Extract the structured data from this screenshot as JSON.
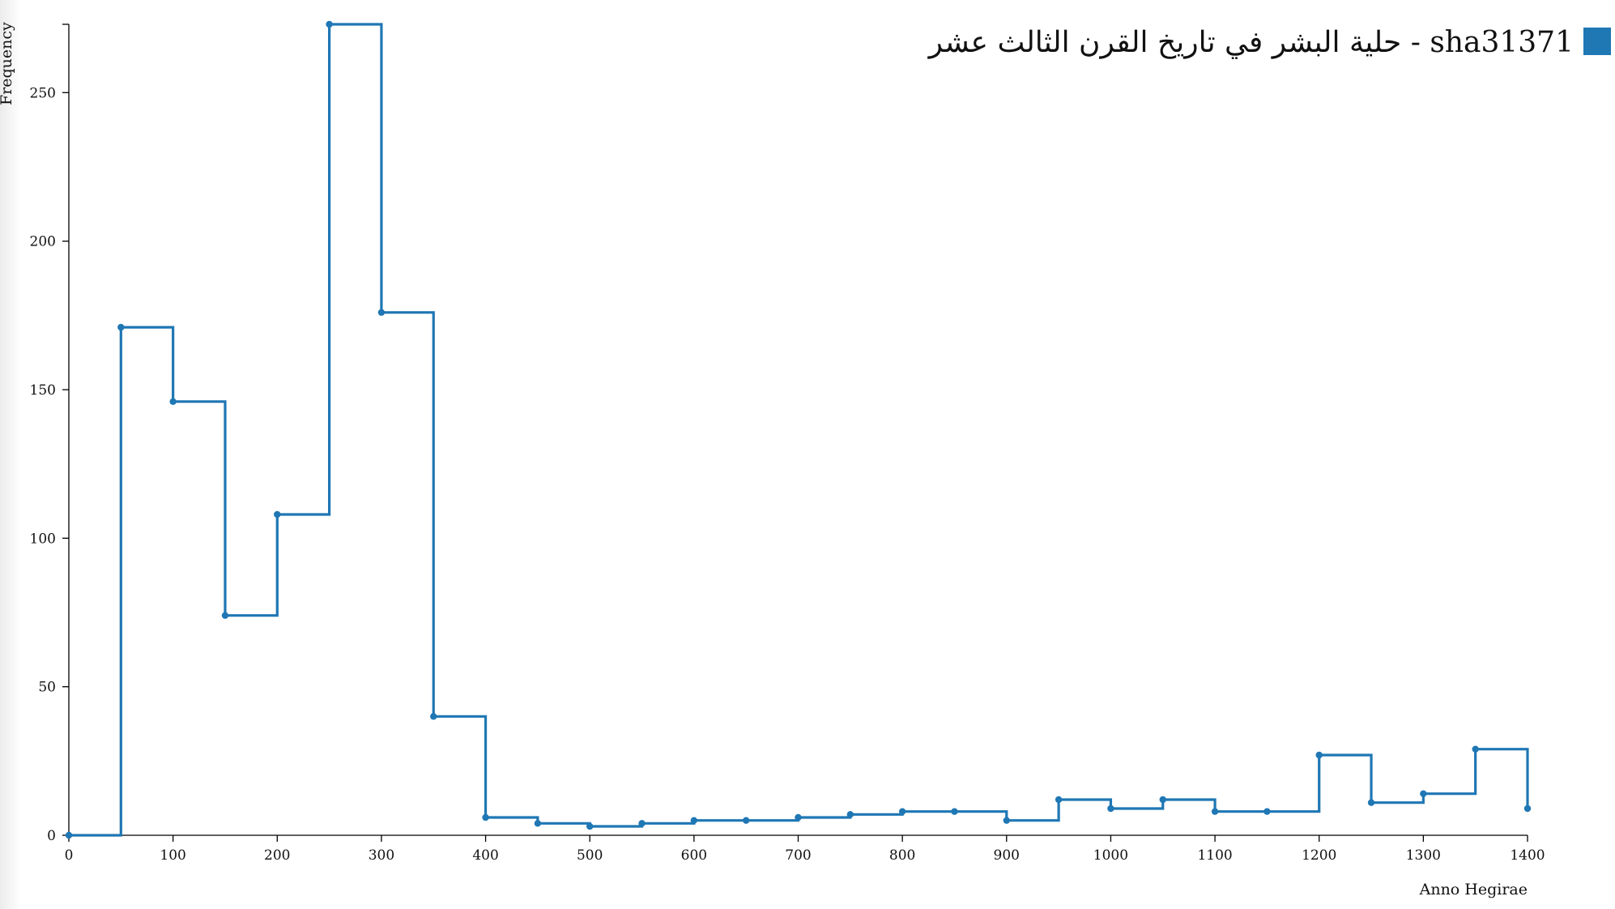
{
  "colors": {
    "series": "#1f77b4",
    "axis": "#000000",
    "background": "#ffffff"
  },
  "chart_data": {
    "type": "line",
    "subtype": "step-after",
    "title": "",
    "xlabel": "Anno Hegirae",
    "ylabel": "Frequency",
    "xlim": [
      0,
      1400
    ],
    "ylim": [
      0,
      273
    ],
    "x_ticks": [
      0,
      100,
      200,
      300,
      400,
      500,
      600,
      700,
      800,
      900,
      1000,
      1100,
      1200,
      1300,
      1400
    ],
    "y_ticks": [
      0,
      50,
      100,
      150,
      200,
      250
    ],
    "grid": false,
    "legend_position": "top-right",
    "series": [
      {
        "name": "حلية البشر في تاريخ القرن الثالث عشر - sha31371",
        "color": "#1f77b4",
        "x": [
          0,
          50,
          100,
          150,
          200,
          250,
          300,
          350,
          400,
          450,
          500,
          550,
          600,
          650,
          700,
          750,
          800,
          850,
          900,
          950,
          1000,
          1050,
          1100,
          1150,
          1200,
          1250,
          1300,
          1350,
          1400
        ],
        "y": [
          0,
          171,
          146,
          74,
          108,
          273,
          176,
          40,
          6,
          4,
          3,
          4,
          5,
          5,
          6,
          7,
          8,
          8,
          5,
          12,
          9,
          12,
          8,
          8,
          27,
          11,
          14,
          29,
          9
        ]
      }
    ]
  }
}
